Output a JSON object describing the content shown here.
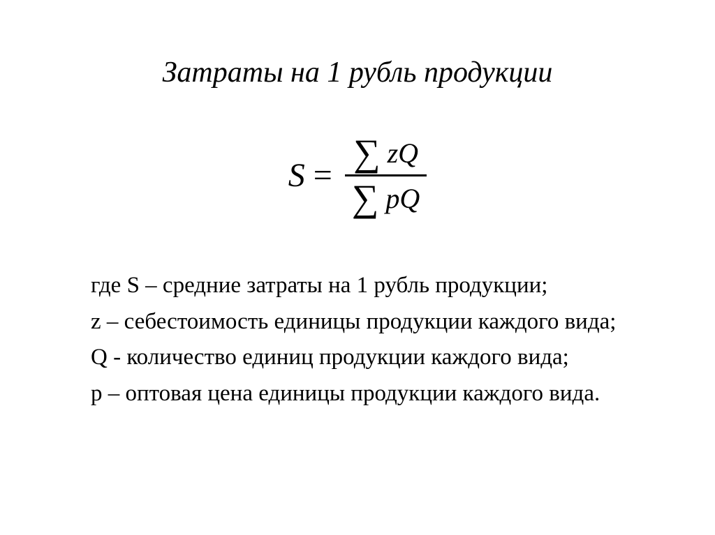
{
  "title": "Затраты на 1 рубль продукции",
  "formula": {
    "lhs": "S",
    "eq": "=",
    "num_sigma": "∑",
    "num_term": "zQ",
    "den_sigma": "∑",
    "den_term": "pQ"
  },
  "definitions": {
    "line1": "где S – средние затраты на 1 рубль продукции;",
    "line2": "z – себестоимость единицы продукции каждого вида;",
    "line3": "Q - количество единиц продукции каждого вида;",
    "line4": "p – оптовая цена единицы продукции каждого вида."
  },
  "styles": {
    "title_fontsize": 42,
    "formula_fontsize": 48,
    "sigma_fontsize": 54,
    "term_fontsize": 40,
    "defs_fontsize": 33,
    "text_color": "#000000",
    "background_color": "#ffffff",
    "font_family": "Georgia, Times New Roman, serif",
    "title_style": "italic",
    "formula_style": "italic"
  }
}
